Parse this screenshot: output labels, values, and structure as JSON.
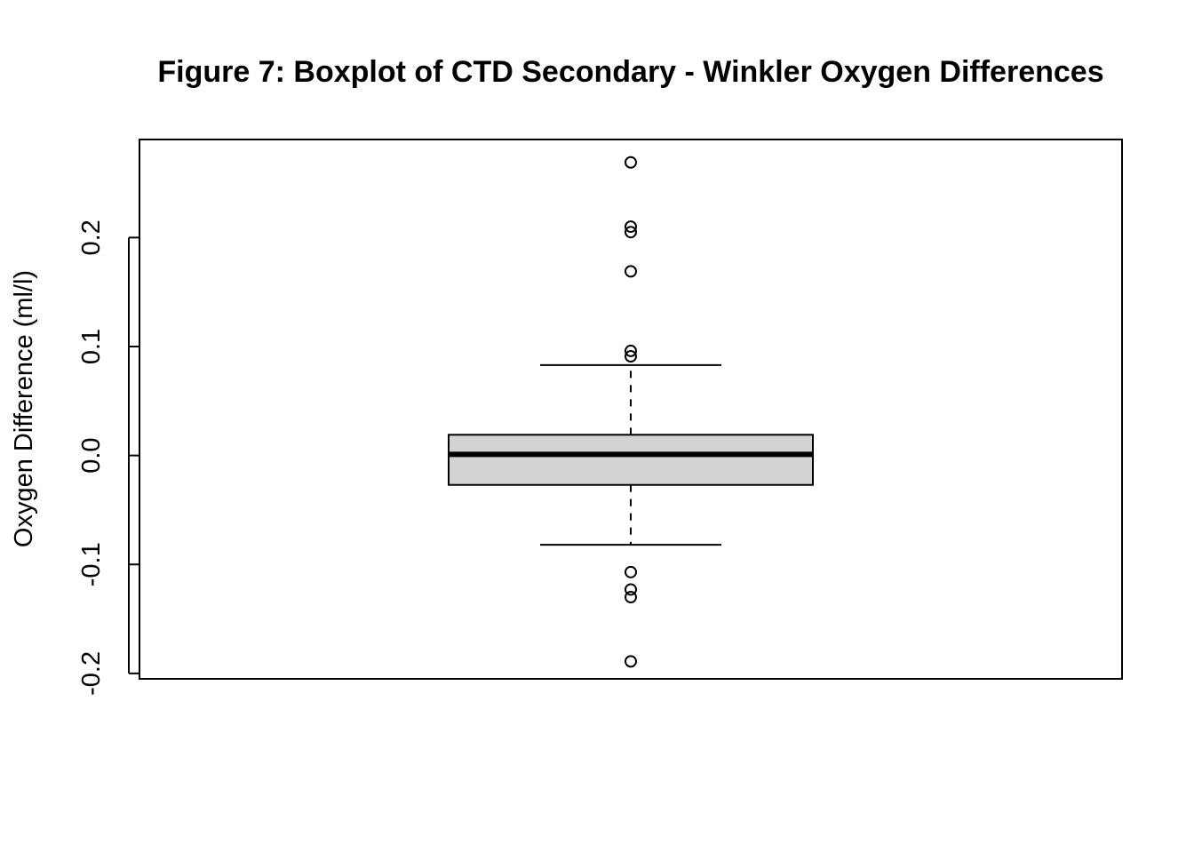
{
  "chart_data": {
    "type": "boxplot",
    "title": "Figure 7: Boxplot of CTD Secondary - Winkler Oxygen Differences",
    "xlabel": "",
    "ylabel": "Oxygen Difference (ml/l)",
    "ylim": [
      -0.205,
      0.29
    ],
    "yticks": [
      -0.2,
      -0.1,
      0.0,
      0.1,
      0.2
    ],
    "ytick_labels": [
      "-0.2",
      "-0.1",
      "0.0",
      "0.1",
      "0.2"
    ],
    "grid": false,
    "box": {
      "q1": -0.027,
      "median": 0.001,
      "q3": 0.019,
      "whisker_low": -0.082,
      "whisker_high": 0.083,
      "fill": "#d3d3d3"
    },
    "outliers": [
      0.269,
      0.21,
      0.205,
      0.169,
      0.096,
      0.091,
      -0.107,
      -0.123,
      -0.13,
      -0.189
    ]
  }
}
